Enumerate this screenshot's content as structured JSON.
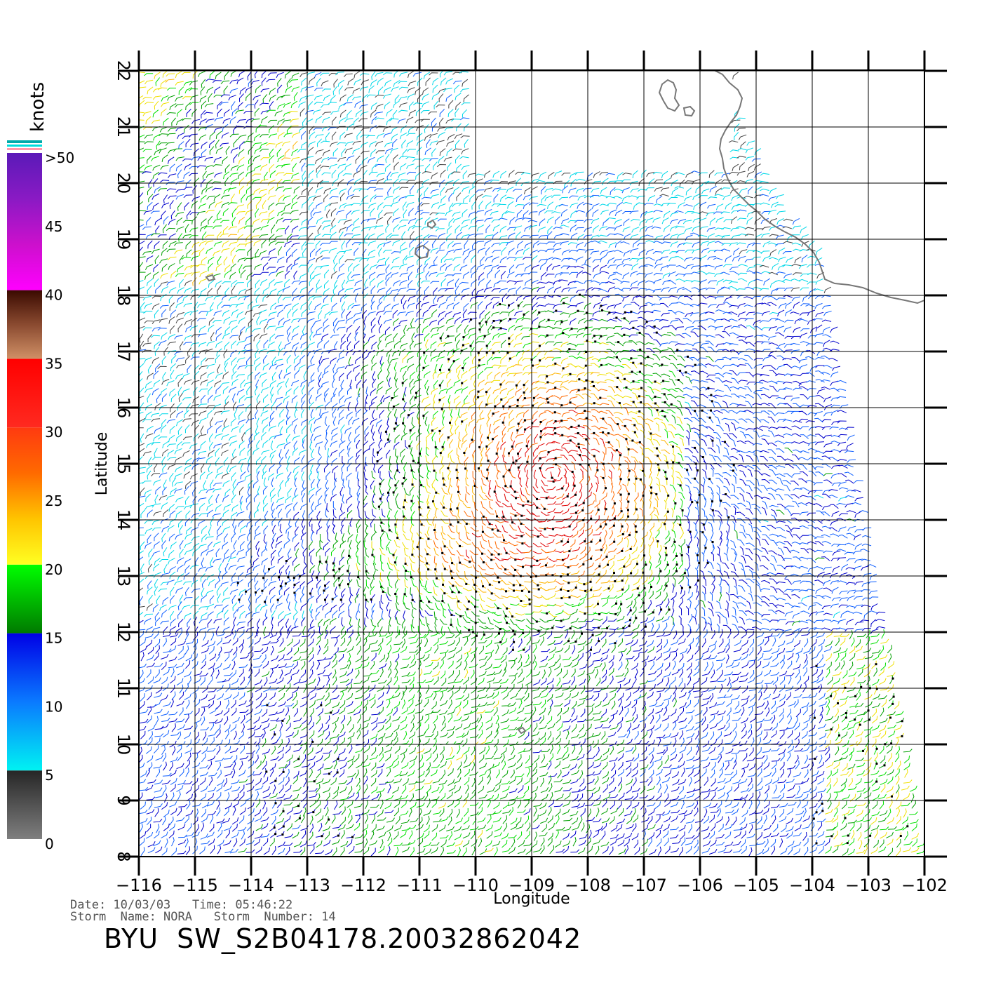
{
  "map": {
    "x_axis": {
      "title": "Longitude",
      "ticks": [
        "-116",
        "-115",
        "-114",
        "-113",
        "-112",
        "-111",
        "-110",
        "-109",
        "-108",
        "-107",
        "-106",
        "-105",
        "-104",
        "-103",
        "-102"
      ]
    },
    "y_axis": {
      "title": "Latitude",
      "ticks": [
        "8",
        "9",
        "10",
        "11",
        "12",
        "13",
        "14",
        "15",
        "16",
        "17",
        "18",
        "19",
        "20",
        "21",
        "22"
      ]
    },
    "extent": {
      "lon_min": -116,
      "lon_max": -102,
      "lat_min": 8,
      "lat_max": 22
    },
    "storm_center_approx": {
      "lon": -108.6,
      "lat": 14.8
    }
  },
  "legend": {
    "title": "knots",
    "labels": [
      ">50",
      "45",
      "40",
      "35",
      "30",
      "25",
      "20",
      "15",
      "10",
      "5",
      "0"
    ],
    "bands": [
      {
        "from": 0,
        "to": 5,
        "colors": [
          "#7f7f7f",
          "#262626"
        ]
      },
      {
        "from": 5,
        "to": 15,
        "colors": [
          "#00f2f2",
          "#0a7aff",
          "#0000e6"
        ]
      },
      {
        "from": 15,
        "to": 20,
        "colors": [
          "#007a00",
          "#00ff00"
        ]
      },
      {
        "from": 20,
        "to": 30,
        "colors": [
          "#ffff22",
          "#ffc400",
          "#ff6a00",
          "#ff3a10"
        ]
      },
      {
        "from": 30,
        "to": 35,
        "colors": [
          "#ff2a20",
          "#ff0000"
        ]
      },
      {
        "from": 35,
        "to": 40,
        "colors": [
          "#d09066",
          "#8a4a30",
          "#3a0a00"
        ]
      },
      {
        "from": 40,
        "to": 50,
        "colors": [
          "#ff00ff",
          "#cc10cc",
          "#8a1ac4",
          "#5a1ab8"
        ]
      }
    ]
  },
  "info": {
    "date_line": "Date: 10/03/03   Time: 05:46:22",
    "storm_line": "Storm  Name: NORA   Storm  Number: 14"
  },
  "title": "BYU  SW_S2B04178.20032862042",
  "colors": {
    "grid": "#000000",
    "coast": "#777777",
    "rain_flag": "#000000"
  }
}
